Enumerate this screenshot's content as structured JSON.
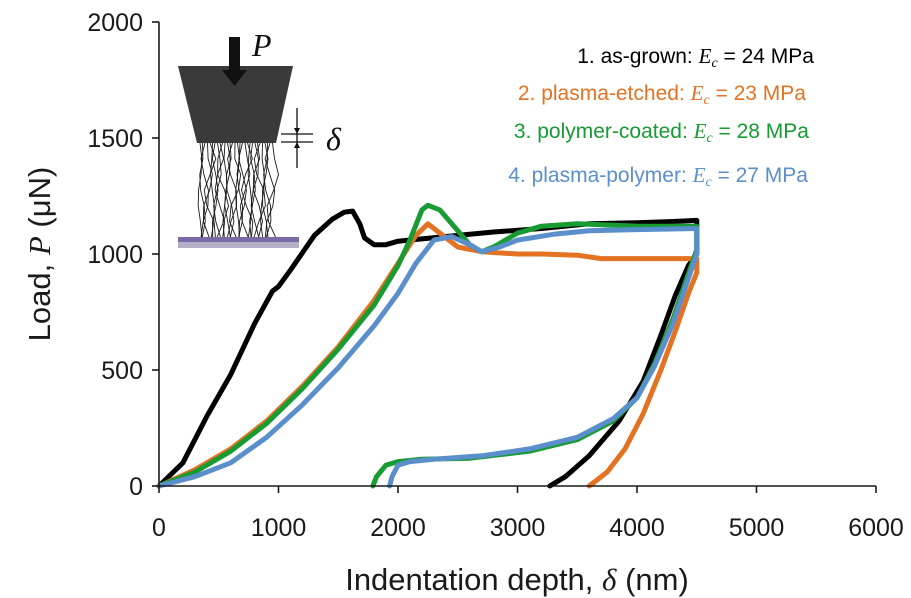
{
  "chart_data": {
    "type": "line",
    "xlabel_prefix": "Indentation depth, ",
    "xlabel_symbol": "δ",
    "xlabel_suffix": " (nm)",
    "ylabel_prefix": "Load, ",
    "ylabel_symbol": "P",
    "ylabel_suffix": " (μN)",
    "xlim": [
      0,
      6000
    ],
    "ylim": [
      0,
      2000
    ],
    "xticks": [
      "0",
      "1000",
      "2000",
      "3000",
      "4000",
      "5000",
      "6000"
    ],
    "yticks": [
      "0",
      "500",
      "1000",
      "1500",
      "2000"
    ],
    "grid": false,
    "legend_position": "top-right",
    "inset_labels": {
      "load": "P",
      "depth": "δ"
    },
    "series": [
      {
        "name": "1. as-grown:",
        "modulus_symbol": "E",
        "modulus_sub": "c",
        "modulus_value": "= 24 MPa",
        "color": "#000000",
        "points": [
          [
            0,
            0
          ],
          [
            200,
            100
          ],
          [
            400,
            300
          ],
          [
            600,
            480
          ],
          [
            800,
            700
          ],
          [
            950,
            840
          ],
          [
            1000,
            860
          ],
          [
            1100,
            930
          ],
          [
            1300,
            1080
          ],
          [
            1450,
            1150
          ],
          [
            1550,
            1180
          ],
          [
            1620,
            1185
          ],
          [
            1680,
            1130
          ],
          [
            1720,
            1070
          ],
          [
            1800,
            1040
          ],
          [
            1900,
            1040
          ],
          [
            2000,
            1055
          ],
          [
            2200,
            1065
          ],
          [
            2500,
            1080
          ],
          [
            2800,
            1095
          ],
          [
            3200,
            1110
          ],
          [
            3600,
            1130
          ],
          [
            4000,
            1135
          ],
          [
            4300,
            1140
          ],
          [
            4500,
            1145
          ],
          [
            4500,
            1000
          ],
          [
            4430,
            950
          ],
          [
            4320,
            820
          ],
          [
            4200,
            650
          ],
          [
            4050,
            450
          ],
          [
            3850,
            280
          ],
          [
            3600,
            130
          ],
          [
            3400,
            40
          ],
          [
            3270,
            0
          ]
        ]
      },
      {
        "name": "2. plasma-etched:",
        "modulus_symbol": "E",
        "modulus_sub": "c",
        "modulus_value": "= 23 MPa",
        "color": "#e37222",
        "points": [
          [
            0,
            0
          ],
          [
            300,
            70
          ],
          [
            600,
            160
          ],
          [
            900,
            280
          ],
          [
            1200,
            430
          ],
          [
            1500,
            600
          ],
          [
            1800,
            800
          ],
          [
            2000,
            960
          ],
          [
            2150,
            1080
          ],
          [
            2250,
            1130
          ],
          [
            2350,
            1090
          ],
          [
            2500,
            1030
          ],
          [
            2700,
            1010
          ],
          [
            3000,
            1000
          ],
          [
            3200,
            1000
          ],
          [
            3500,
            995
          ],
          [
            3700,
            980
          ],
          [
            4000,
            980
          ],
          [
            4500,
            980
          ],
          [
            4500,
            920
          ],
          [
            4430,
            830
          ],
          [
            4330,
            680
          ],
          [
            4200,
            500
          ],
          [
            4050,
            310
          ],
          [
            3900,
            160
          ],
          [
            3750,
            60
          ],
          [
            3600,
            0
          ]
        ]
      },
      {
        "name": "3. polymer-coated:",
        "modulus_symbol": "E",
        "modulus_sub": "c",
        "modulus_value": "= 28 MPa",
        "color": "#179b32",
        "points": [
          [
            0,
            0
          ],
          [
            300,
            60
          ],
          [
            600,
            150
          ],
          [
            900,
            270
          ],
          [
            1200,
            420
          ],
          [
            1500,
            590
          ],
          [
            1800,
            780
          ],
          [
            2000,
            950
          ],
          [
            2100,
            1060
          ],
          [
            2200,
            1190
          ],
          [
            2250,
            1210
          ],
          [
            2350,
            1190
          ],
          [
            2500,
            1100
          ],
          [
            2600,
            1040
          ],
          [
            2700,
            1010
          ],
          [
            2800,
            1030
          ],
          [
            3000,
            1090
          ],
          [
            3200,
            1120
          ],
          [
            3500,
            1130
          ],
          [
            4000,
            1120
          ],
          [
            4500,
            1120
          ],
          [
            4500,
            1020
          ],
          [
            4420,
            900
          ],
          [
            4300,
            720
          ],
          [
            4150,
            530
          ],
          [
            4000,
            380
          ],
          [
            3800,
            280
          ],
          [
            3500,
            200
          ],
          [
            3100,
            150
          ],
          [
            2600,
            120
          ],
          [
            2200,
            115
          ],
          [
            2000,
            105
          ],
          [
            1900,
            90
          ],
          [
            1820,
            40
          ],
          [
            1790,
            0
          ]
        ]
      },
      {
        "name": "4. plasma-polymer:",
        "modulus_symbol": "E",
        "modulus_sub": "c",
        "modulus_value": "= 27 MPa",
        "color": "#5b8fcc",
        "points": [
          [
            0,
            0
          ],
          [
            300,
            40
          ],
          [
            600,
            100
          ],
          [
            900,
            210
          ],
          [
            1200,
            350
          ],
          [
            1500,
            510
          ],
          [
            1800,
            690
          ],
          [
            2000,
            830
          ],
          [
            2150,
            960
          ],
          [
            2300,
            1060
          ],
          [
            2450,
            1075
          ],
          [
            2600,
            1040
          ],
          [
            2700,
            1010
          ],
          [
            2850,
            1030
          ],
          [
            3000,
            1060
          ],
          [
            3300,
            1085
          ],
          [
            3600,
            1100
          ],
          [
            4000,
            1105
          ],
          [
            4500,
            1110
          ],
          [
            4500,
            1000
          ],
          [
            4420,
            880
          ],
          [
            4300,
            700
          ],
          [
            4150,
            520
          ],
          [
            4000,
            380
          ],
          [
            3800,
            290
          ],
          [
            3500,
            210
          ],
          [
            3100,
            160
          ],
          [
            2700,
            130
          ],
          [
            2300,
            115
          ],
          [
            2100,
            105
          ],
          [
            2000,
            90
          ],
          [
            1950,
            40
          ],
          [
            1930,
            0
          ]
        ]
      }
    ]
  }
}
